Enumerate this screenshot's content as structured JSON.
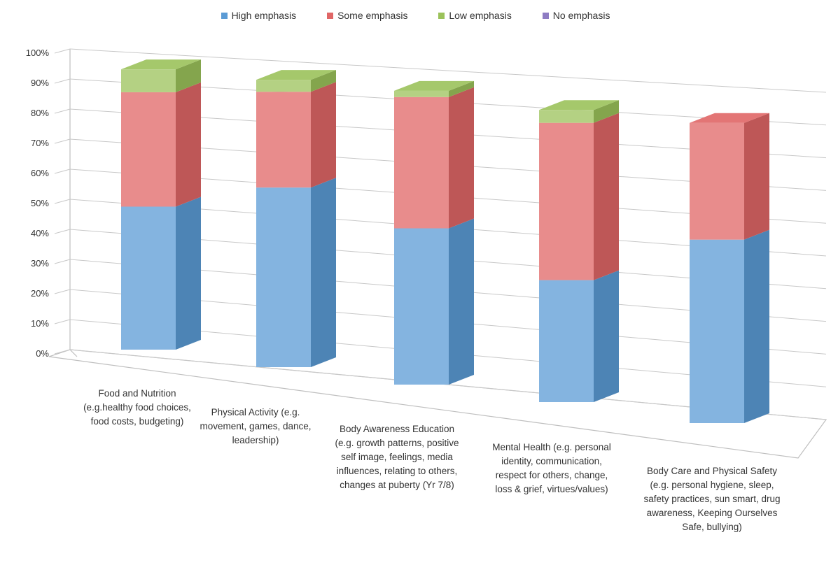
{
  "chart_data": {
    "type": "bar",
    "stacked": true,
    "percent_stacked": true,
    "three_d": true,
    "title": "",
    "xlabel": "",
    "ylabel": "",
    "ylim": [
      0,
      100
    ],
    "y_ticks": [
      "0%",
      "10%",
      "20%",
      "30%",
      "40%",
      "50%",
      "60%",
      "70%",
      "80%",
      "90%",
      "100%"
    ],
    "grid": true,
    "legend": "top",
    "categories": [
      "Food and Nutrition (e.g.healthy food choices, food costs, budgeting)",
      "Physical Activity (e.g. movement, games, dance, leadership)",
      "Body Awareness Education (e.g. growth patterns, positive self image, feelings, media influences, relating to others, changes at puberty (Yr 7/8)",
      "Mental Health (e.g. personal identity, communication, respect for others, change, loss & grief, virtues/values)",
      "Body Care and Physical Safety (e.g. personal hygiene, sleep, safety practices, sun smart, drug awareness, Keeping Ourselves Safe, bullying)"
    ],
    "series": [
      {
        "name": "High emphasis",
        "color": "#5b9bd5",
        "values": [
          50,
          60,
          50,
          38,
          55
        ]
      },
      {
        "name": "Some emphasis",
        "color": "#e06666",
        "values": [
          40,
          32,
          42,
          49,
          35
        ]
      },
      {
        "name": "Low emphasis",
        "color": "#9bc25a",
        "values": [
          8,
          4,
          2,
          4,
          0
        ]
      },
      {
        "name": "No emphasis",
        "color": "#8e7cc3",
        "values": [
          0,
          0,
          0,
          0,
          0
        ]
      }
    ]
  }
}
